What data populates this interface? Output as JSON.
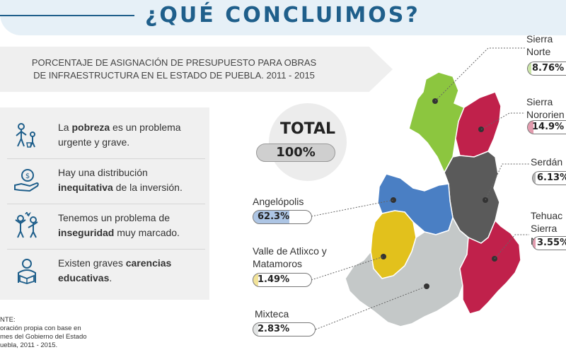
{
  "header": {
    "title": "¿QUÉ CONCLUIMOS?"
  },
  "subtitle": {
    "line1": "PORCENTAJE DE ASIGNACIÓN DE PRESUPUESTO PARA OBRAS",
    "line2": "DE INFRAESTRUCTURA EN EL ESTADO DE PUEBLA. 2011 - 2015"
  },
  "conclusions": [
    {
      "icon": "poverty-icon",
      "pre": "La ",
      "bold": "pobreza",
      "post": " es un problema urgente y grave."
    },
    {
      "icon": "money-hand-icon",
      "pre": "Hay una distribución ",
      "bold": "inequitativa",
      "post": " de la inversión."
    },
    {
      "icon": "insecurity-icon",
      "pre": "Tenemos un problema de ",
      "bold": "inseguridad",
      "post": " muy marcado."
    },
    {
      "icon": "education-icon",
      "pre": "Existen graves ",
      "bold": "carencias educativas",
      "post": "."
    }
  ],
  "source": {
    "line1": "NTE:",
    "line2": "oración propia con base en",
    "line3": "mes del Gobierno del Estado",
    "line4": "uebla, 2011 - 2015."
  },
  "total": {
    "label": "TOTAL",
    "value": "100%"
  },
  "regions": {
    "angelopolis": {
      "name": "Angelópolis",
      "value": "62.3%",
      "percent": 62.3,
      "color": "#4a7fc4"
    },
    "atlixco": {
      "name_line1": "Valle de Atlixco y",
      "name_line2": "Matamoros",
      "value": "1.49%",
      "percent": 1.49,
      "color": "#e2c11c"
    },
    "mixteca": {
      "name": "Mixteca",
      "value": "2.83%",
      "percent": 2.83,
      "color": "#bfc3c3"
    },
    "sierra_norte": {
      "name_line1": "Sierra",
      "name_line2": "Norte",
      "value": "8.76%",
      "percent": 8.76,
      "color": "#8cc63f"
    },
    "sierra_nororiental": {
      "name_line1": "Sierra",
      "name_line2": "Nororien",
      "value": "14.9%",
      "percent": 14.9,
      "color": "#c0214b"
    },
    "serdan": {
      "name": "Serdán",
      "value": "6.13%",
      "percent": 6.13,
      "color": "#5a5a5a"
    },
    "tehuacan": {
      "name_line1": "Tehuac",
      "name_line2": "Sierra N",
      "value": "3.55%",
      "percent": 3.55,
      "color": "#c0214b"
    }
  }
}
